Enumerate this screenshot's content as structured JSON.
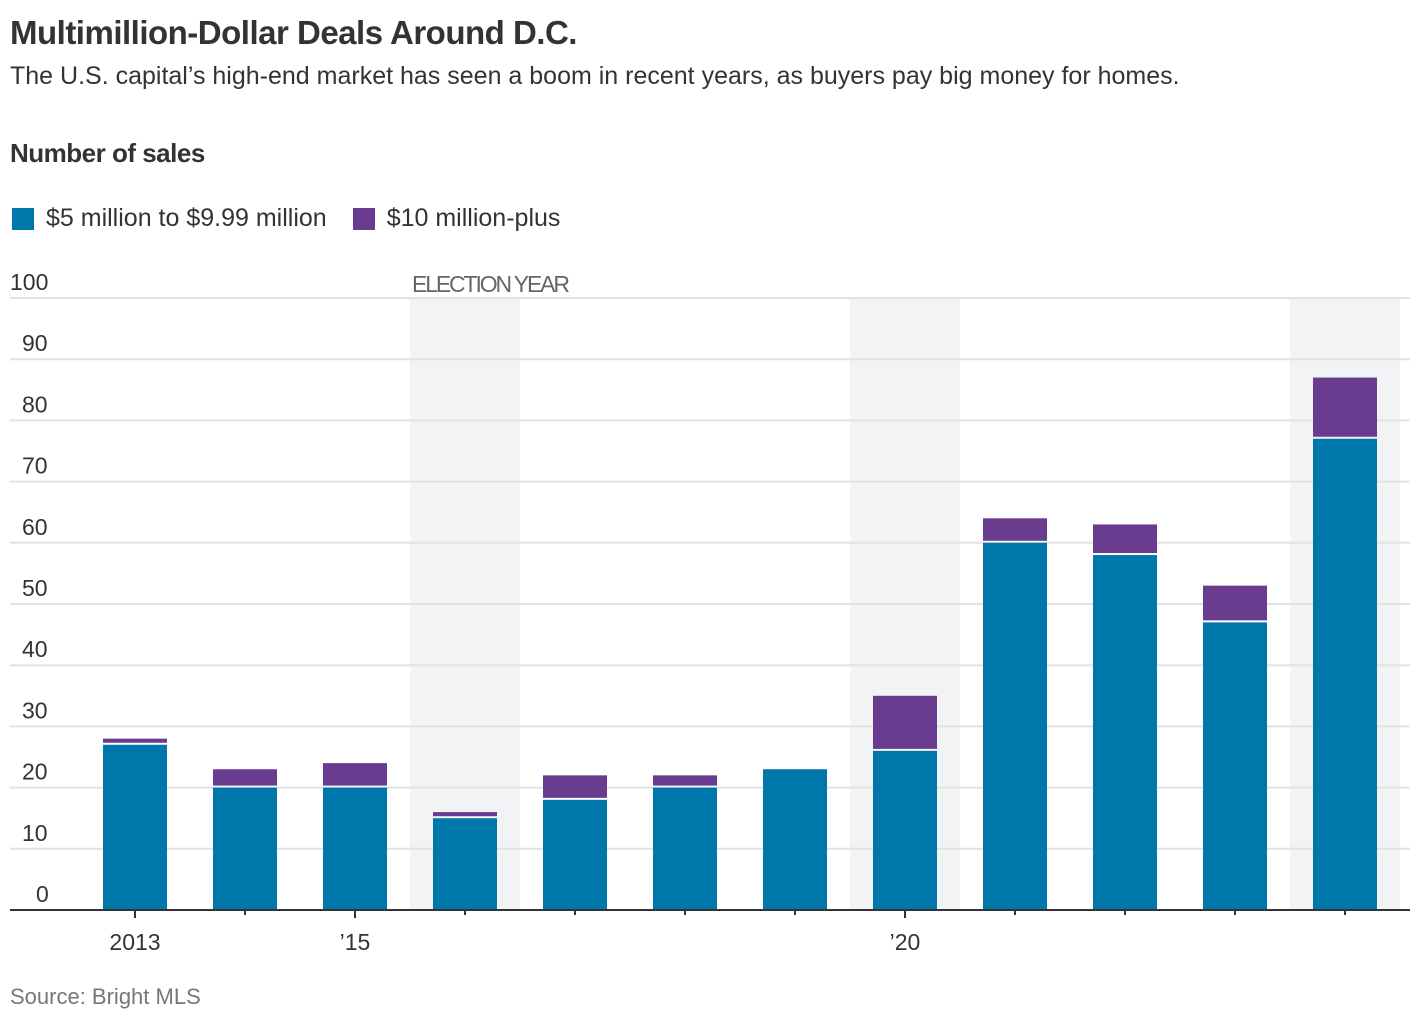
{
  "title": "Multimillion-Dollar Deals Around D.C.",
  "subtitle": "The U.S. capital’s high-end market has seen a boom in recent years, as buyers pay big money for homes.",
  "source": "Source: Bright MLS",
  "colors": {
    "series_a": "#0077ab",
    "series_b": "#693c8f",
    "shade": "#f2f3f4",
    "grid": "#e2e2e2"
  },
  "chart_data": {
    "type": "bar",
    "stacked": true,
    "title": "Multimillion-Dollar Deals Around D.C.",
    "ylabel": "Number of sales",
    "xlabel": "",
    "ylim": [
      0,
      100
    ],
    "yticks": [
      0,
      10,
      20,
      30,
      40,
      50,
      60,
      70,
      80,
      90,
      100
    ],
    "categories": [
      "2013",
      "2014",
      "2015",
      "2016",
      "2017",
      "2018",
      "2019",
      "2020",
      "2021",
      "2022",
      "2023",
      "2024"
    ],
    "xtick_labels": {
      "2013": "2013",
      "2015": "’15",
      "2020": "’20"
    },
    "series": [
      {
        "name": "$5 million to $9.99 million",
        "values": [
          27,
          20,
          20,
          15,
          18,
          20,
          23,
          26,
          60,
          58,
          47,
          77
        ]
      },
      {
        "name": "$10 million-plus",
        "values": [
          1,
          3,
          4,
          1,
          4,
          2,
          0,
          9,
          4,
          5,
          6,
          10
        ]
      }
    ],
    "shaded_categories": [
      "2016",
      "2020",
      "2024"
    ],
    "annotation": "ELECTION YEAR",
    "legend_position": "top-left",
    "grid": true
  }
}
